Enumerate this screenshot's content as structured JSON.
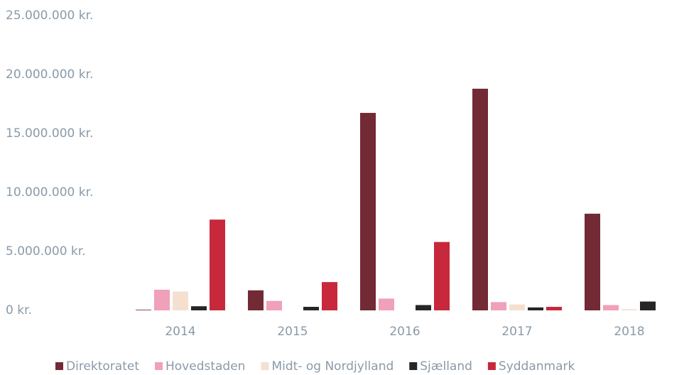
{
  "chart_data": {
    "type": "bar",
    "categories": [
      "2014",
      "2015",
      "2016",
      "2017",
      "2018"
    ],
    "series": [
      {
        "name": "Direktoratet",
        "color": "#722a35",
        "values": [
          50000,
          1700000,
          16750000,
          18800000,
          8200000
        ]
      },
      {
        "name": "Hovedstaden",
        "color": "#f0a0b8",
        "values": [
          1750000,
          800000,
          1000000,
          700000,
          450000
        ]
      },
      {
        "name": "Midt- og Nordjylland",
        "color": "#f5e0d0",
        "values": [
          1600000,
          0,
          0,
          500000,
          100000
        ]
      },
      {
        "name": "Sjælland",
        "color": "#262626",
        "values": [
          350000,
          300000,
          450000,
          250000,
          750000
        ]
      },
      {
        "name": "Syddanmark",
        "color": "#c8283c",
        "values": [
          7700000,
          2400000,
          5800000,
          300000,
          0
        ]
      }
    ],
    "ylim": [
      0,
      25000000
    ],
    "yticks": [
      {
        "value": 0,
        "label": "0 kr."
      },
      {
        "value": 5000000,
        "label": "5.000.000 kr."
      },
      {
        "value": 10000000,
        "label": "10.000.000 kr."
      },
      {
        "value": 15000000,
        "label": "15.000.000 kr."
      },
      {
        "value": 20000000,
        "label": "20.000.000 kr."
      },
      {
        "value": 25000000,
        "label": "25.000.000 kr."
      }
    ],
    "grid": false
  }
}
